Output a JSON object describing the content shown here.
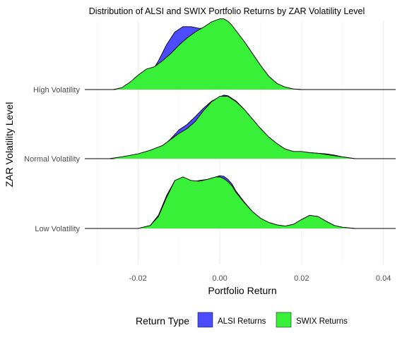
{
  "chart_data": {
    "type": "area",
    "subtype": "ridgeline-density",
    "title": "Distribution of ALSI and SWIX Portfolio Returns by ZAR Volatility Level",
    "xlabel": "Portfolio Return",
    "ylabel": "ZAR Volatility Level",
    "xlim": [
      -0.033,
      0.043
    ],
    "x_ticks": [
      -0.02,
      0.0,
      0.02,
      0.04
    ],
    "x_tick_labels": [
      "-0.02",
      "0.00",
      "0.02",
      "0.04"
    ],
    "categories": [
      "Low Volatility",
      "Normal Volatility",
      "High Volatility"
    ],
    "grid": "on",
    "legend": {
      "title": "Return Type",
      "position": "bottom",
      "entries": [
        {
          "label": "ALSI Returns",
          "color": "#4B4BFF"
        },
        {
          "label": "SWIX Returns",
          "color": "#38F038"
        }
      ]
    },
    "series": [
      {
        "name": "ALSI Returns",
        "color": "#4B4BFF",
        "groups": [
          {
            "category": "Low Volatility",
            "x": [
              -0.033,
              -0.02,
              -0.017,
              -0.015,
              -0.013,
              -0.011,
              -0.009,
              -0.007,
              -0.005,
              -0.003,
              -0.001,
              0.0,
              0.001,
              0.002,
              0.003,
              0.004,
              0.006,
              0.008,
              0.01,
              0.012,
              0.014,
              0.016,
              0.018,
              0.02,
              0.022,
              0.024,
              0.026,
              0.028,
              0.03,
              0.033,
              0.043
            ],
            "y": [
              0,
              0,
              0.05,
              0.22,
              0.55,
              0.8,
              0.83,
              0.78,
              0.8,
              0.82,
              0.86,
              0.88,
              0.87,
              0.82,
              0.74,
              0.62,
              0.44,
              0.28,
              0.17,
              0.1,
              0.06,
              0.04,
              0.07,
              0.15,
              0.22,
              0.2,
              0.12,
              0.05,
              0.02,
              0,
              0
            ]
          },
          {
            "category": "Normal Volatility",
            "x": [
              -0.033,
              -0.026,
              -0.022,
              -0.018,
              -0.014,
              -0.012,
              -0.01,
              -0.008,
              -0.006,
              -0.004,
              -0.002,
              0.0,
              0.001,
              0.002,
              0.004,
              0.006,
              0.008,
              0.01,
              0.012,
              0.014,
              0.016,
              0.018,
              0.02,
              0.022,
              0.024,
              0.026,
              0.028,
              0.03,
              0.033,
              0.043
            ],
            "y": [
              0,
              0,
              0.03,
              0.09,
              0.2,
              0.33,
              0.48,
              0.57,
              0.7,
              0.84,
              0.96,
              1.03,
              1.06,
              1.05,
              0.96,
              0.82,
              0.66,
              0.5,
              0.36,
              0.25,
              0.16,
              0.12,
              0.11,
              0.1,
              0.09,
              0.08,
              0.06,
              0.03,
              0,
              0
            ]
          },
          {
            "category": "High Volatility",
            "x": [
              -0.033,
              -0.026,
              -0.024,
              -0.021,
              -0.019,
              -0.017,
              -0.015,
              -0.013,
              -0.011,
              -0.009,
              -0.007,
              -0.005,
              -0.003,
              -0.001,
              0.0,
              0.001,
              0.002,
              0.003,
              0.004,
              0.006,
              0.008,
              0.01,
              0.012,
              0.014,
              0.016,
              0.018,
              0.02,
              0.025,
              0.033,
              0.043
            ],
            "y": [
              0,
              0,
              0.01,
              0.04,
              0.1,
              0.25,
              0.48,
              0.75,
              0.96,
              1.05,
              1.05,
              1.02,
              1.03,
              1.08,
              1.12,
              1.1,
              1.08,
              1.0,
              0.94,
              0.8,
              0.6,
              0.4,
              0.22,
              0.1,
              0.04,
              0.01,
              0,
              0,
              0,
              0
            ]
          }
        ]
      },
      {
        "name": "SWIX Returns",
        "color": "#38F038",
        "groups": [
          {
            "category": "Low Volatility",
            "x": [
              -0.033,
              -0.02,
              -0.017,
              -0.015,
              -0.013,
              -0.011,
              -0.009,
              -0.007,
              -0.005,
              -0.003,
              -0.001,
              0.0,
              0.001,
              0.002,
              0.003,
              0.004,
              0.006,
              0.008,
              0.01,
              0.012,
              0.014,
              0.016,
              0.018,
              0.02,
              0.022,
              0.024,
              0.026,
              0.028,
              0.03,
              0.033,
              0.043
            ],
            "y": [
              0,
              0,
              0.05,
              0.2,
              0.52,
              0.8,
              0.86,
              0.8,
              0.79,
              0.82,
              0.86,
              0.86,
              0.83,
              0.78,
              0.71,
              0.6,
              0.43,
              0.28,
              0.17,
              0.1,
              0.06,
              0.04,
              0.07,
              0.15,
              0.22,
              0.2,
              0.12,
              0.05,
              0.02,
              0,
              0
            ]
          },
          {
            "category": "Normal Volatility",
            "x": [
              -0.033,
              -0.027,
              -0.024,
              -0.02,
              -0.017,
              -0.014,
              -0.012,
              -0.01,
              -0.008,
              -0.006,
              -0.004,
              -0.002,
              0.0,
              0.002,
              0.004,
              0.006,
              0.008,
              0.01,
              0.012,
              0.014,
              0.016,
              0.018,
              0.02,
              0.022,
              0.024,
              0.026,
              0.028,
              0.03,
              0.033,
              0.043
            ],
            "y": [
              0,
              0,
              0.03,
              0.08,
              0.14,
              0.22,
              0.32,
              0.42,
              0.5,
              0.62,
              0.8,
              0.95,
              1.04,
              1.04,
              0.95,
              0.82,
              0.66,
              0.5,
              0.36,
              0.25,
              0.16,
              0.12,
              0.12,
              0.1,
              0.09,
              0.07,
              0.05,
              0.03,
              0,
              0
            ]
          },
          {
            "category": "High Volatility",
            "x": [
              -0.033,
              -0.026,
              -0.024,
              -0.022,
              -0.02,
              -0.018,
              -0.016,
              -0.014,
              -0.012,
              -0.01,
              -0.008,
              -0.006,
              -0.004,
              -0.002,
              0.0,
              0.001,
              0.002,
              0.003,
              0.004,
              0.006,
              0.008,
              0.01,
              0.012,
              0.014,
              0.016,
              0.018,
              0.02,
              0.025,
              0.033,
              0.043
            ],
            "y": [
              0,
              0,
              0.03,
              0.12,
              0.24,
              0.34,
              0.38,
              0.48,
              0.6,
              0.74,
              0.86,
              0.96,
              1.04,
              1.13,
              1.18,
              1.18,
              1.14,
              1.07,
              0.98,
              0.8,
              0.6,
              0.4,
              0.22,
              0.1,
              0.04,
              0.01,
              0,
              0,
              0,
              0
            ]
          }
        ]
      }
    ]
  }
}
